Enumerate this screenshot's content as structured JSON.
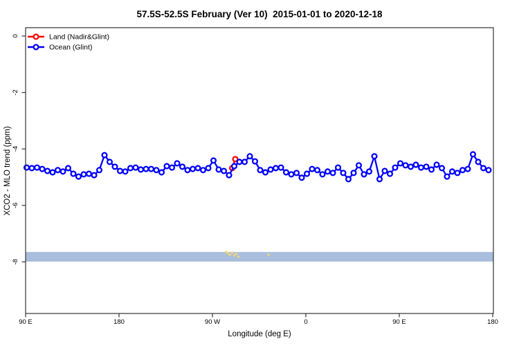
{
  "title": "57.5S-52.5S February (Ver 10)  2015-01-01 to 2020-12-18",
  "chart_data": {
    "type": "line",
    "title": "57.5S-52.5S February (Ver 10)  2015-01-01 to 2020-12-18",
    "xlabel": "Longitude (deg E)",
    "ylabel": "XCO2 - MLO trend (ppm)",
    "xlim": [
      90,
      540
    ],
    "ylim": [
      -9.8,
      0.3
    ],
    "grid": false,
    "x_ticks": [
      {
        "value": 90,
        "label": "90 E"
      },
      {
        "value": 180,
        "label": "180"
      },
      {
        "value": 270,
        "label": "90 W"
      },
      {
        "value": 360,
        "label": "0"
      },
      {
        "value": 450,
        "label": "90 E"
      },
      {
        "value": 540,
        "label": "180"
      }
    ],
    "y_ticks": [
      {
        "value": 0,
        "label": "0"
      },
      {
        "value": -2,
        "label": "-2"
      },
      {
        "value": -4,
        "label": "-4"
      },
      {
        "value": -6,
        "label": "-6"
      },
      {
        "value": -8,
        "label": "-8"
      }
    ],
    "legend": {
      "position": "top-left",
      "entries": [
        {
          "label": "Land (Nadir&Glint)",
          "color": "#ff0000"
        },
        {
          "label": "Ocean (Glint)",
          "color": "#0000ff"
        }
      ]
    },
    "band": {
      "y_from": -7.65,
      "y_to": -7.99,
      "color": "#a9bedc"
    },
    "series": [
      {
        "name": "Land (Nadir&Glint)",
        "color": "#ff0000",
        "marker": "open-circle",
        "x": [
          289,
          292
        ],
        "values": [
          -4.68,
          -4.36
        ]
      },
      {
        "name": "Ocean (Glint)",
        "color": "#0000ff",
        "marker": "open-circle",
        "x": [
          91,
          96,
          101,
          106,
          111,
          116,
          121,
          126,
          131,
          136,
          141,
          146,
          151,
          156,
          161,
          166,
          171,
          176,
          181,
          186,
          191,
          196,
          201,
          206,
          211,
          216,
          221,
          226,
          231,
          236,
          241,
          246,
          251,
          256,
          261,
          266,
          271,
          276,
          281,
          286,
          291,
          296,
          301,
          306,
          311,
          316,
          321,
          326,
          331,
          336,
          341,
          346,
          351,
          356,
          361,
          366,
          371,
          376,
          381,
          386,
          391,
          396,
          401,
          406,
          411,
          416,
          421,
          426,
          431,
          436,
          441,
          446,
          451,
          456,
          461,
          466,
          471,
          476,
          481,
          486,
          491,
          496,
          501,
          506,
          511,
          516,
          521,
          526,
          531,
          536
        ],
        "values": [
          -4.66,
          -4.68,
          -4.66,
          -4.71,
          -4.78,
          -4.83,
          -4.75,
          -4.8,
          -4.68,
          -4.88,
          -4.98,
          -4.9,
          -4.88,
          -4.93,
          -4.75,
          -4.22,
          -4.46,
          -4.63,
          -4.78,
          -4.8,
          -4.68,
          -4.66,
          -4.73,
          -4.71,
          -4.71,
          -4.75,
          -4.83,
          -4.61,
          -4.66,
          -4.51,
          -4.63,
          -4.75,
          -4.71,
          -4.68,
          -4.75,
          -4.68,
          -4.41,
          -4.73,
          -4.78,
          -4.93,
          -4.61,
          -4.46,
          -4.46,
          -4.26,
          -4.44,
          -4.75,
          -4.83,
          -4.73,
          -4.68,
          -4.66,
          -4.83,
          -4.9,
          -4.85,
          -5.02,
          -4.88,
          -4.71,
          -4.75,
          -4.9,
          -4.8,
          -4.85,
          -4.66,
          -4.85,
          -5.07,
          -4.85,
          -4.58,
          -4.9,
          -4.8,
          -4.26,
          -5.07,
          -4.78,
          -4.88,
          -4.66,
          -4.51,
          -4.58,
          -4.63,
          -4.56,
          -4.66,
          -4.63,
          -4.73,
          -4.56,
          -4.68,
          -4.98,
          -4.8,
          -4.85,
          -4.75,
          -4.71,
          -4.19,
          -4.46,
          -4.68,
          -4.75
        ]
      },
      {
        "name": "minor-cluster",
        "color": "#f2d67c",
        "marker": "dot",
        "x": [
          283,
          285,
          287,
          289,
          291,
          293,
          295,
          324
        ],
        "values": [
          -7.65,
          -7.7,
          -7.75,
          -7.67,
          -7.77,
          -7.72,
          -7.82,
          -7.75
        ]
      }
    ]
  }
}
